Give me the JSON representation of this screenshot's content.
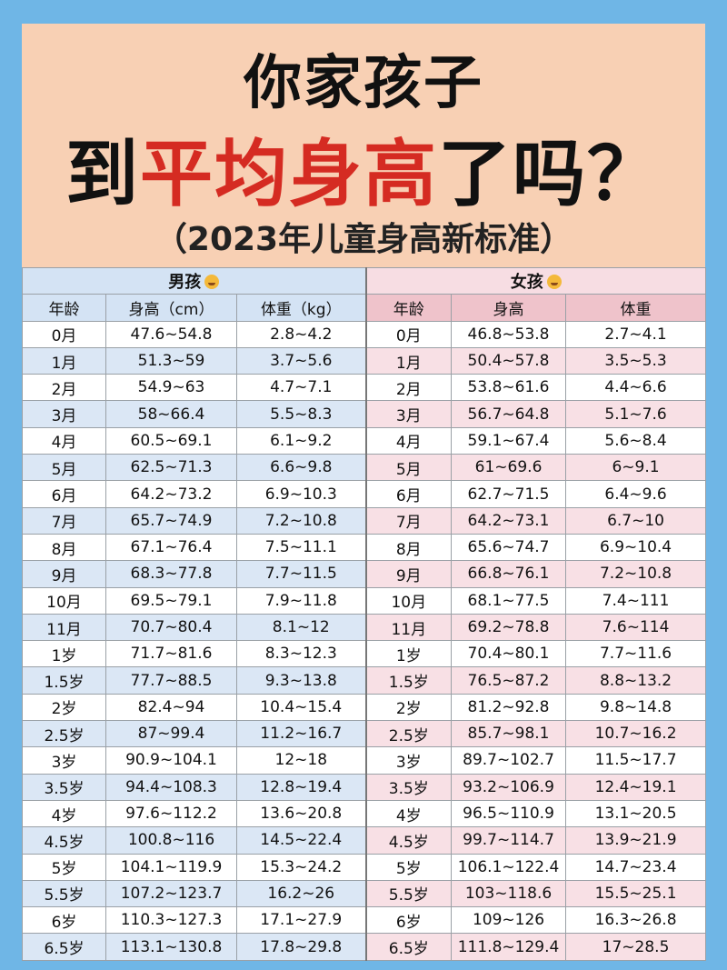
{
  "title": {
    "line1": "你家孩子",
    "line2_prefix": "到",
    "line2_highlight": "平均身高",
    "line2_suffix": "了吗？",
    "subtitle": "（2023年儿童身高新标准）"
  },
  "colors": {
    "page_bg": "#6fb6e6",
    "header_bg": "#f8d0b4",
    "highlight_red": "#d52b22",
    "boy_row_alt": "#dbe7f5",
    "girl_row_alt": "#f8e0e5"
  },
  "table": {
    "boy_group": "男孩",
    "girl_group": "女孩",
    "boy_icon": "boy-face-emoji",
    "girl_icon": "girl-face-emoji",
    "boy_headers": [
      "年龄",
      "身高（cm）",
      "体重（kg）"
    ],
    "girl_headers": [
      "年龄",
      "身高",
      "体重"
    ],
    "rows": [
      {
        "age": "0月",
        "boy_h": "47.6~54.8",
        "boy_w": "2.8~4.2",
        "girl_age": "0月",
        "girl_h": "46.8~53.8",
        "girl_w": "2.7~4.1"
      },
      {
        "age": "1月",
        "boy_h": "51.3~59",
        "boy_w": "3.7~5.6",
        "girl_age": "1月",
        "girl_h": "50.4~57.8",
        "girl_w": "3.5~5.3"
      },
      {
        "age": "2月",
        "boy_h": "54.9~63",
        "boy_w": "4.7~7.1",
        "girl_age": "2月",
        "girl_h": "53.8~61.6",
        "girl_w": "4.4~6.6"
      },
      {
        "age": "3月",
        "boy_h": "58~66.4",
        "boy_w": "5.5~8.3",
        "girl_age": "3月",
        "girl_h": "56.7~64.8",
        "girl_w": "5.1~7.6"
      },
      {
        "age": "4月",
        "boy_h": "60.5~69.1",
        "boy_w": "6.1~9.2",
        "girl_age": "4月",
        "girl_h": "59.1~67.4",
        "girl_w": "5.6~8.4"
      },
      {
        "age": "5月",
        "boy_h": "62.5~71.3",
        "boy_w": "6.6~9.8",
        "girl_age": "5月",
        "girl_h": "61~69.6",
        "girl_w": "6~9.1"
      },
      {
        "age": "6月",
        "boy_h": "64.2~73.2",
        "boy_w": "6.9~10.3",
        "girl_age": "6月",
        "girl_h": "62.7~71.5",
        "girl_w": "6.4~9.6"
      },
      {
        "age": "7月",
        "boy_h": "65.7~74.9",
        "boy_w": "7.2~10.8",
        "girl_age": "7月",
        "girl_h": "64.2~73.1",
        "girl_w": "6.7~10"
      },
      {
        "age": "8月",
        "boy_h": "67.1~76.4",
        "boy_w": "7.5~11.1",
        "girl_age": "8月",
        "girl_h": "65.6~74.7",
        "girl_w": "6.9~10.4"
      },
      {
        "age": "9月",
        "boy_h": "68.3~77.8",
        "boy_w": "7.7~11.5",
        "girl_age": "9月",
        "girl_h": "66.8~76.1",
        "girl_w": "7.2~10.8"
      },
      {
        "age": "10月",
        "boy_h": "69.5~79.1",
        "boy_w": "7.9~11.8",
        "girl_age": "10月",
        "girl_h": "68.1~77.5",
        "girl_w": "7.4~111"
      },
      {
        "age": "11月",
        "boy_h": "70.7~80.4",
        "boy_w": "8.1~12",
        "girl_age": "11月",
        "girl_h": "69.2~78.8",
        "girl_w": "7.6~114"
      },
      {
        "age": "1岁",
        "boy_h": "71.7~81.6",
        "boy_w": "8.3~12.3",
        "girl_age": "1岁",
        "girl_h": "70.4~80.1",
        "girl_w": "7.7~11.6"
      },
      {
        "age": "1.5岁",
        "boy_h": "77.7~88.5",
        "boy_w": "9.3~13.8",
        "girl_age": "1.5岁",
        "girl_h": "76.5~87.2",
        "girl_w": "8.8~13.2"
      },
      {
        "age": "2岁",
        "boy_h": "82.4~94",
        "boy_w": "10.4~15.4",
        "girl_age": "2岁",
        "girl_h": "81.2~92.8",
        "girl_w": "9.8~14.8"
      },
      {
        "age": "2.5岁",
        "boy_h": "87~99.4",
        "boy_w": "11.2~16.7",
        "girl_age": "2.5岁",
        "girl_h": "85.7~98.1",
        "girl_w": "10.7~16.2"
      },
      {
        "age": "3岁",
        "boy_h": "90.9~104.1",
        "boy_w": "12~18",
        "girl_age": "3岁",
        "girl_h": "89.7~102.7",
        "girl_w": "11.5~17.7"
      },
      {
        "age": "3.5岁",
        "boy_h": "94.4~108.3",
        "boy_w": "12.8~19.4",
        "girl_age": "3.5岁",
        "girl_h": "93.2~106.9",
        "girl_w": "12.4~19.1"
      },
      {
        "age": "4岁",
        "boy_h": "97.6~112.2",
        "boy_w": "13.6~20.8",
        "girl_age": "4岁",
        "girl_h": "96.5~110.9",
        "girl_w": "13.1~20.5"
      },
      {
        "age": "4.5岁",
        "boy_h": "100.8~116",
        "boy_w": "14.5~22.4",
        "girl_age": "4.5岁",
        "girl_h": "99.7~114.7",
        "girl_w": "13.9~21.9"
      },
      {
        "age": "5岁",
        "boy_h": "104.1~119.9",
        "boy_w": "15.3~24.2",
        "girl_age": "5岁",
        "girl_h": "106.1~122.4",
        "girl_w": "14.7~23.4"
      },
      {
        "age": "5.5岁",
        "boy_h": "107.2~123.7",
        "boy_w": "16.2~26",
        "girl_age": "5.5岁",
        "girl_h": "103~118.6",
        "girl_w": "15.5~25.1"
      },
      {
        "age": "6岁",
        "boy_h": "110.3~127.3",
        "boy_w": "17.1~27.9",
        "girl_age": "6岁",
        "girl_h": "109~126",
        "girl_w": "16.3~26.8"
      },
      {
        "age": "6.5岁",
        "boy_h": "113.1~130.8",
        "boy_w": "17.8~29.8",
        "girl_age": "6.5岁",
        "girl_h": "111.8~129.4",
        "girl_w": "17~28.5"
      }
    ]
  }
}
